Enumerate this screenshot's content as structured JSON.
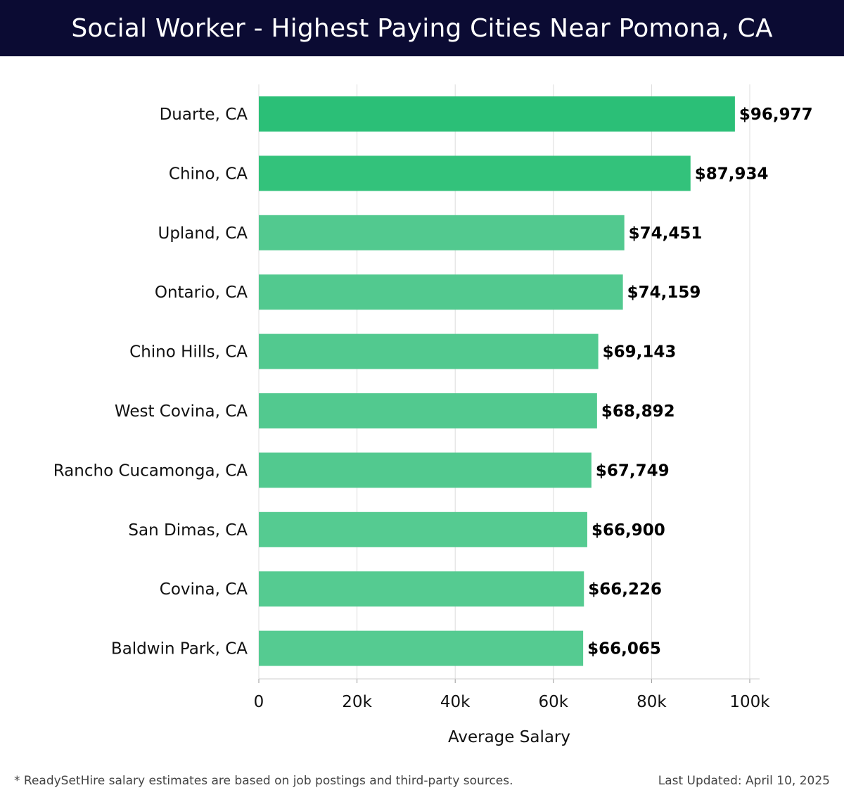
{
  "header": {
    "title": "Social Worker - Highest Paying Cities Near Pomona, CA"
  },
  "footer": {
    "note": "* ReadySetHire salary estimates are based on job postings and third-party sources.",
    "updated": "Last Updated: April 10, 2025"
  },
  "chart_data": {
    "type": "bar",
    "orientation": "horizontal",
    "title": "Social Worker - Highest Paying Cities Near Pomona, CA",
    "xlabel": "Average Salary",
    "ylabel": "",
    "xlim": [
      0,
      100000
    ],
    "xticks": [
      0,
      20000,
      40000,
      60000,
      80000,
      100000
    ],
    "xtick_labels": [
      "0",
      "20k",
      "40k",
      "60k",
      "80k",
      "100k"
    ],
    "grid": "vertical",
    "categories": [
      "Duarte, CA",
      "Chino, CA",
      "Upland, CA",
      "Ontario, CA",
      "Chino Hills, CA",
      "West Covina, CA",
      "Rancho Cucamonga, CA",
      "San Dimas, CA",
      "Covina, CA",
      "Baldwin Park, CA"
    ],
    "values": [
      96977,
      87934,
      74451,
      74159,
      69143,
      68892,
      67749,
      66900,
      66226,
      66065
    ],
    "value_labels": [
      "$96,977",
      "$87,934",
      "$74,451",
      "$74,159",
      "$69,143",
      "$68,892",
      "$67,749",
      "$66,900",
      "$66,226",
      "$66,065"
    ],
    "colors": [
      "#2bbf77",
      "#33c27b",
      "#52c98f",
      "#52c98f",
      "#52c98f",
      "#52c98f",
      "#52c98f",
      "#55cb91",
      "#55cb91",
      "#55cb91"
    ]
  }
}
